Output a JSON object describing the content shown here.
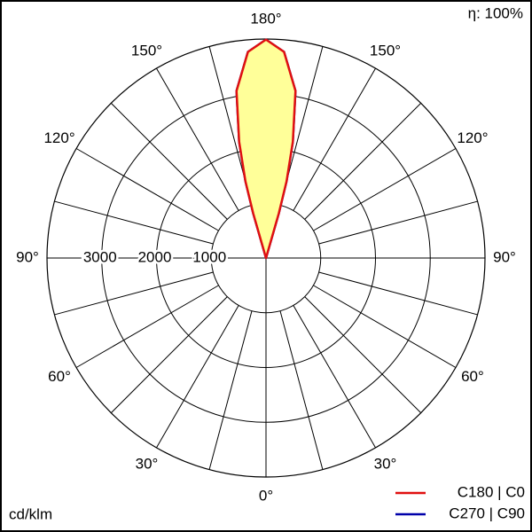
{
  "chart_data": {
    "type": "polar",
    "efficiency": "η: 100%",
    "unit": "cd/klm",
    "rlim": [
      0,
      4000
    ],
    "rticks": [
      1000,
      2000,
      3000
    ],
    "angle_ticks": [
      {
        "value": 0,
        "label": "0°"
      },
      {
        "value": 30,
        "label": "30°"
      },
      {
        "value": 60,
        "label": "60°"
      },
      {
        "value": 90,
        "label": "90°"
      },
      {
        "value": 120,
        "label": "120°"
      },
      {
        "value": 150,
        "label": "150°"
      },
      {
        "value": 180,
        "label": "180°"
      }
    ],
    "fill": "#ffff99",
    "series": [
      {
        "name": "C270 | C90",
        "color": "#0000aa",
        "x": [
          162,
          164,
          165,
          167,
          170,
          175,
          180,
          185,
          190,
          193,
          195,
          196,
          198
        ],
        "values": [
          0,
          850,
          1450,
          2180,
          3100,
          3780,
          3990,
          3780,
          3100,
          2180,
          1450,
          850,
          0
        ]
      },
      {
        "name": "C180 | C0",
        "color": "#e01010",
        "x": [
          162,
          164,
          165,
          167,
          170,
          175,
          180,
          185,
          190,
          193,
          195,
          196,
          198
        ],
        "values": [
          0,
          850,
          1450,
          2180,
          3100,
          3780,
          3990,
          3780,
          3100,
          2180,
          1450,
          850,
          0
        ]
      }
    ]
  }
}
